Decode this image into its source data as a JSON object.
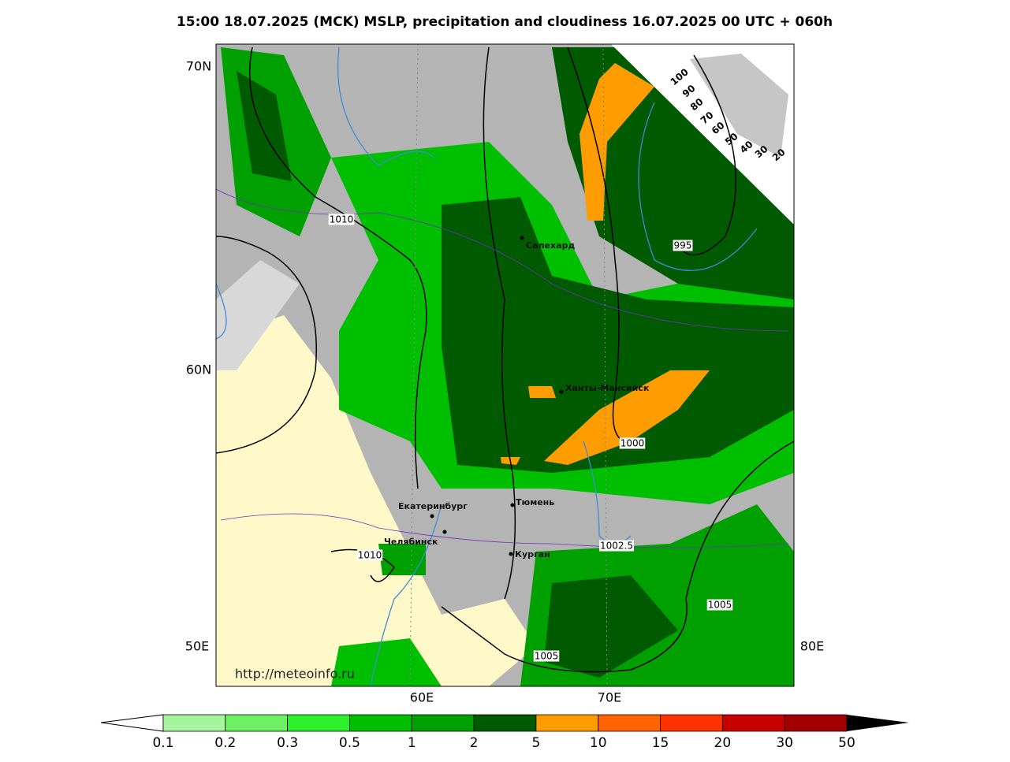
{
  "title": "15:00 18.07.2025 (MCK) MSLP, precipitation and cloudiness 16.07.2025 00 UTC + 060h",
  "map": {
    "lat_labels": [
      "70N",
      "60N"
    ],
    "lon_labels": [
      "50E",
      "60E",
      "70E",
      "80E"
    ],
    "cities": [
      "Салехард",
      "Ханты-Мансийск",
      "Екатеринбург",
      "Тюмень",
      "Челябинск",
      "Курган"
    ],
    "isobar_labels": [
      "1010",
      "995",
      "1000",
      "1002.5",
      "1010",
      "1005",
      "1005"
    ],
    "cloud_scale": [
      "100",
      "90",
      "80",
      "70",
      "60",
      "50",
      "40",
      "30",
      "20"
    ],
    "watermark": "http://meteoinfo.ru"
  },
  "legend": {
    "labels": [
      "0.1",
      "0.2",
      "0.3",
      "0.5",
      "1",
      "2",
      "5",
      "10",
      "15",
      "20",
      "30",
      "50"
    ],
    "colors": [
      "#a6f59e",
      "#6cf064",
      "#2df02d",
      "#00be00",
      "#00a000",
      "#005a00",
      "#ff9d00",
      "#ff6400",
      "#ff3200",
      "#c80000",
      "#a00000"
    ]
  }
}
